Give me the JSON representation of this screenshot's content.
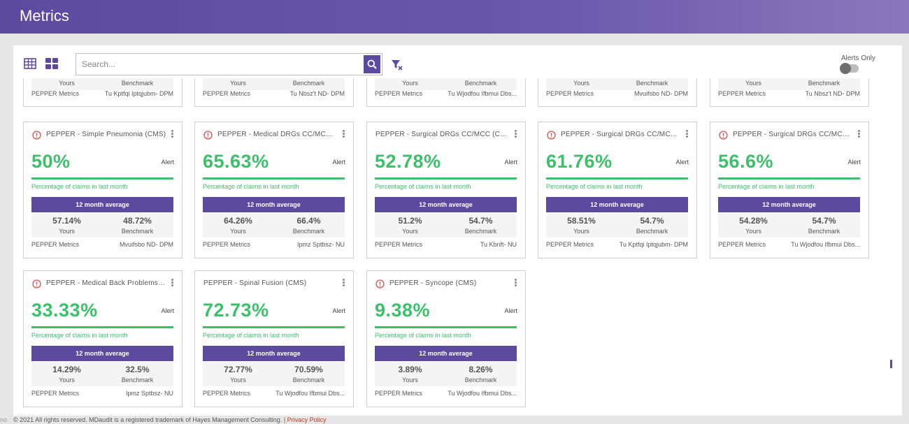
{
  "header": {
    "title": "Metrics"
  },
  "search": {
    "placeholder": "Search..."
  },
  "alerts_only": {
    "label": "Alerts Only"
  },
  "cut_cards": [
    {
      "yours_label": "Yours",
      "benchmark_label": "Benchmark",
      "source": "PEPPER Metrics",
      "entity": "Tu Kptfqi Iptqjubm- DPM"
    },
    {
      "yours_label": "Yours",
      "benchmark_label": "Benchmark",
      "source": "PEPPER Metrics",
      "entity": "Tu Nbsz't ND- DPM"
    },
    {
      "yours_label": "Yours",
      "benchmark_label": "Benchmark",
      "source": "PEPPER Metrics",
      "entity": "Tu Wjodfou Ifbmui Dbs..."
    },
    {
      "yours_label": "Yours",
      "benchmark_label": "Benchmark",
      "source": "PEPPER Metrics",
      "entity": "Mvuifsbo ND- DPM"
    },
    {
      "yours_label": "Yours",
      "benchmark_label": "Benchmark",
      "source": "PEPPER Metrics",
      "entity": "Tu Nbsz't ND- DPM"
    }
  ],
  "cards": [
    {
      "title": "PEPPER - Simple Pneumonia (CMS)",
      "alert": true,
      "value": "50%",
      "status": "Alert",
      "subtitle": "Percentage of claims in last month",
      "avg_label": "12 month average",
      "yours": "57.14%",
      "yours_label": "Yours",
      "benchmark": "48.72%",
      "benchmark_label": "Benchmark",
      "source": "PEPPER Metrics",
      "entity": "Mvuifsbo ND- DPM"
    },
    {
      "title": "PEPPER - Medical DRGs CC/MCC (CMS)",
      "alert": true,
      "value": "65.63%",
      "status": "Alert",
      "subtitle": "Percentage of claims in last month",
      "avg_label": "12 month average",
      "yours": "64.26%",
      "yours_label": "Yours",
      "benchmark": "66.4%",
      "benchmark_label": "Benchmark",
      "source": "PEPPER Metrics",
      "entity": "Ipmz Sptbsz- NU"
    },
    {
      "title": "PEPPER - Surgical DRGs CC/MCC (CMS)",
      "alert": false,
      "value": "52.78%",
      "status": "Alert",
      "subtitle": "Percentage of claims in last month",
      "avg_label": "12 month average",
      "yours": "51.2%",
      "yours_label": "Yours",
      "benchmark": "54.7%",
      "benchmark_label": "Benchmark",
      "source": "PEPPER Metrics",
      "entity": "Tu Kbnft- NU"
    },
    {
      "title": "PEPPER - Surgical DRGs CC/MCC (CMS)",
      "alert": true,
      "value": "61.76%",
      "status": "Alert",
      "subtitle": "Percentage of claims in last month",
      "avg_label": "12 month average",
      "yours": "58.51%",
      "yours_label": "Yours",
      "benchmark": "54.7%",
      "benchmark_label": "Benchmark",
      "source": "PEPPER Metrics",
      "entity": "Tu Kptfqi Iptqjubm- DPM"
    },
    {
      "title": "PEPPER - Surgical DRGs CC/MCC (CMS)",
      "alert": true,
      "value": "56.6%",
      "status": "Alert",
      "subtitle": "Percentage of claims in last month",
      "avg_label": "12 month average",
      "yours": "54.28%",
      "yours_label": "Yours",
      "benchmark": "54.7%",
      "benchmark_label": "Benchmark",
      "source": "PEPPER Metrics",
      "entity": "Tu Wjodfou Ifbmui Dbs..."
    },
    {
      "title": "PEPPER - Medical Back Problems (CMS)",
      "alert": true,
      "value": "33.33%",
      "status": "Alert",
      "subtitle": "Percentage of claims in last month",
      "avg_label": "12 month average",
      "yours": "14.29%",
      "yours_label": "Yours",
      "benchmark": "32.5%",
      "benchmark_label": "Benchmark",
      "source": "PEPPER Metrics",
      "entity": "Ipmz Sptbsz- NU"
    },
    {
      "title": "PEPPER - Spinal Fusion (CMS)",
      "alert": false,
      "value": "72.73%",
      "status": "Alert",
      "subtitle": "Percentage of claims in last month",
      "avg_label": "12 month average",
      "yours": "72.77%",
      "yours_label": "Yours",
      "benchmark": "70.59%",
      "benchmark_label": "Benchmark",
      "source": "PEPPER Metrics",
      "entity": "Tu Wjodfou Ifbmui Dbs..."
    },
    {
      "title": "PEPPER - Syncope (CMS)",
      "alert": true,
      "value": "9.38%",
      "status": "Alert",
      "subtitle": "Percentage of claims in last month",
      "avg_label": "12 month average",
      "yours": "3.89%",
      "yours_label": "Yours",
      "benchmark": "8.26%",
      "benchmark_label": "Benchmark",
      "source": "PEPPER Metrics",
      "entity": "Tu Wjodfou Ifbmui Dbs..."
    }
  ],
  "footer": {
    "prefix": "no",
    "copyright": "© 2021 All rights reserved. MDaudit is a registered trademark of Hayes Management Consulting. |",
    "privacy": "Privacy Policy"
  },
  "colors": {
    "brand": "#5c4a9e",
    "positive": "#3cc16b",
    "alert": "#d9534f"
  }
}
